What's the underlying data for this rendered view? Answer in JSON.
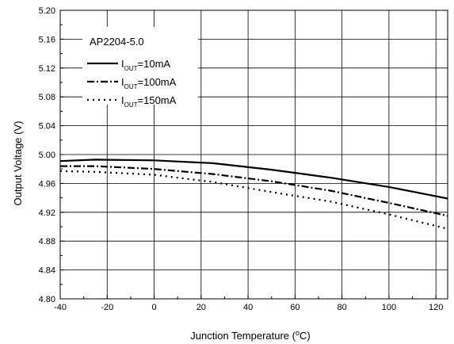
{
  "chart_data": {
    "type": "line",
    "title": "",
    "xlabel": "Junction Temperature (",
    "xlabel_sup": "o",
    "xlabel_tail": "C)",
    "ylabel": "Output Voltage (V)",
    "xlim": [
      -40,
      125
    ],
    "ylim": [
      4.8,
      5.2
    ],
    "xticks": [
      -40,
      -20,
      0,
      20,
      40,
      60,
      80,
      100,
      120
    ],
    "yticks": [
      "4.80",
      "4.84",
      "4.88",
      "4.92",
      "4.96",
      "5.00",
      "5.04",
      "5.08",
      "5.12",
      "5.16",
      "5.20"
    ],
    "grid": true,
    "legend_position": "top-left",
    "legend_title": "AP2204-5.0",
    "series": [
      {
        "name": "IOUT=10mA",
        "label_main": "I",
        "label_sub": "OUT",
        "label_tail": "=10mA",
        "style": "solid",
        "color": "#000000",
        "x": [
          -40,
          -25,
          0,
          25,
          50,
          75,
          100,
          125
        ],
        "y": [
          4.991,
          4.993,
          4.992,
          4.988,
          4.979,
          4.968,
          4.955,
          4.939
        ]
      },
      {
        "name": "IOUT=100mA",
        "label_main": "I",
        "label_sub": "OUT",
        "label_tail": "=100mA",
        "style": "dashdot",
        "color": "#000000",
        "x": [
          -40,
          -25,
          0,
          25,
          50,
          75,
          100,
          125
        ],
        "y": [
          4.984,
          4.984,
          4.98,
          4.973,
          4.963,
          4.95,
          4.933,
          4.915
        ]
      },
      {
        "name": "IOUT=150mA",
        "label_main": "I",
        "label_sub": "OUT",
        "label_tail": "=150mA",
        "style": "dot",
        "color": "#000000",
        "x": [
          -40,
          -25,
          0,
          25,
          50,
          75,
          100,
          125
        ],
        "y": [
          4.977,
          4.976,
          4.972,
          4.962,
          4.948,
          4.935,
          4.917,
          4.897
        ]
      }
    ]
  }
}
